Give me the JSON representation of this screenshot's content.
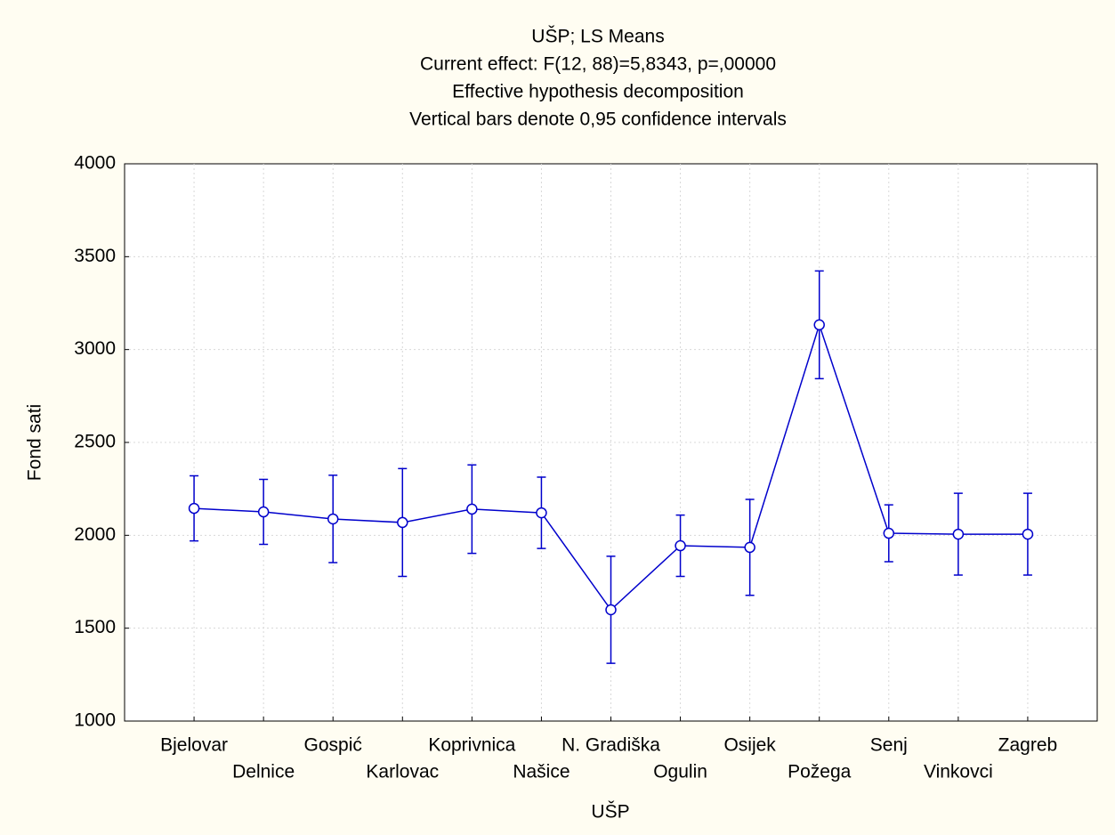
{
  "chart_data": {
    "type": "line",
    "title": "UŠP; LS Means",
    "subtitles": [
      "Current effect: F(12, 88)=5,8343, p=,00000",
      "Effective hypothesis decomposition",
      "Vertical bars denote 0,95 confidence intervals"
    ],
    "x_label": "UŠP",
    "y_label": "Fond sati",
    "categories": [
      "Bjelovar",
      "Delnice",
      "Gospić",
      "Karlovac",
      "Koprivnica",
      "Našice",
      "N. Gradiška",
      "Ogulin",
      "Osijek",
      "Požega",
      "Senj",
      "Vinkovci",
      "Zagreb"
    ],
    "values": [
      2145,
      2126,
      2088,
      2069,
      2141,
      2121,
      1599,
      1944,
      1935,
      3133,
      2011,
      2006,
      2006
    ],
    "errors": [
      175,
      175,
      235,
      290,
      238,
      192,
      288,
      165,
      258,
      290,
      153,
      220,
      220
    ],
    "color": "#0000cc",
    "ylim": [
      1000,
      4000
    ],
    "yticks": [
      1000,
      1500,
      2000,
      2500,
      3000,
      3500,
      4000
    ],
    "grid": true
  }
}
